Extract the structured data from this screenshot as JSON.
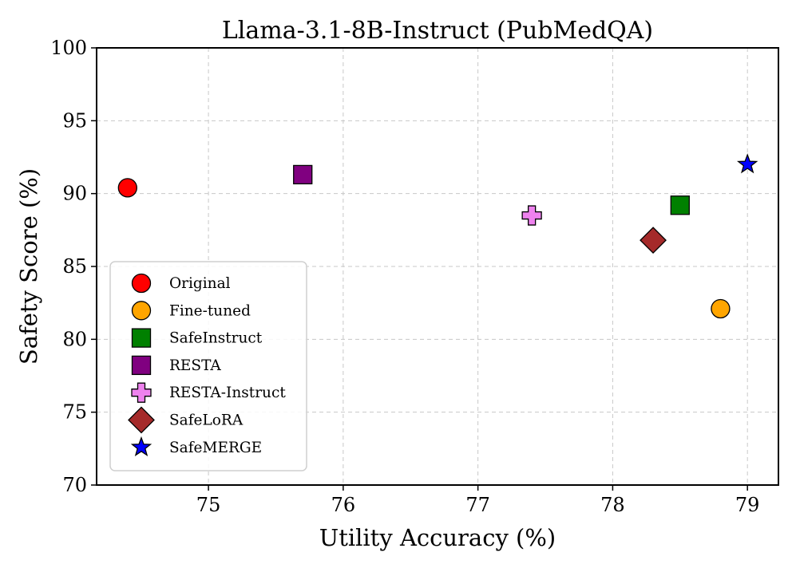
{
  "chart_data": {
    "type": "scatter",
    "title": "Llama-3.1-8B-Instruct (PubMedQA)",
    "xlabel": "Utility Accuracy (%)",
    "ylabel": "Safety Score (%)",
    "xlim": [
      74.17,
      79.23
    ],
    "ylim": [
      70,
      100
    ],
    "xticks": [
      75,
      76,
      77,
      78,
      79
    ],
    "yticks": [
      70,
      75,
      80,
      85,
      90,
      95,
      100
    ],
    "grid": true,
    "legend_position": "lower-left",
    "series": [
      {
        "name": "Original",
        "marker": "circle",
        "color": "#ff0000",
        "x": 74.4,
        "y": 90.4
      },
      {
        "name": "Fine-tuned",
        "marker": "circle",
        "color": "#ffa500",
        "x": 78.8,
        "y": 82.1
      },
      {
        "name": "SafeInstruct",
        "marker": "square",
        "color": "#008000",
        "x": 78.5,
        "y": 89.2
      },
      {
        "name": "RESTA",
        "marker": "square",
        "color": "#800080",
        "x": 75.7,
        "y": 91.3
      },
      {
        "name": "RESTA-Instruct",
        "marker": "plus",
        "color": "#ee82ee",
        "x": 77.4,
        "y": 88.5
      },
      {
        "name": "SafeLoRA",
        "marker": "diamond",
        "color": "#a52a2a",
        "x": 78.3,
        "y": 86.8
      },
      {
        "name": "SafeMERGE",
        "marker": "star",
        "color": "#0000ff",
        "x": 79.0,
        "y": 92.0
      }
    ]
  }
}
